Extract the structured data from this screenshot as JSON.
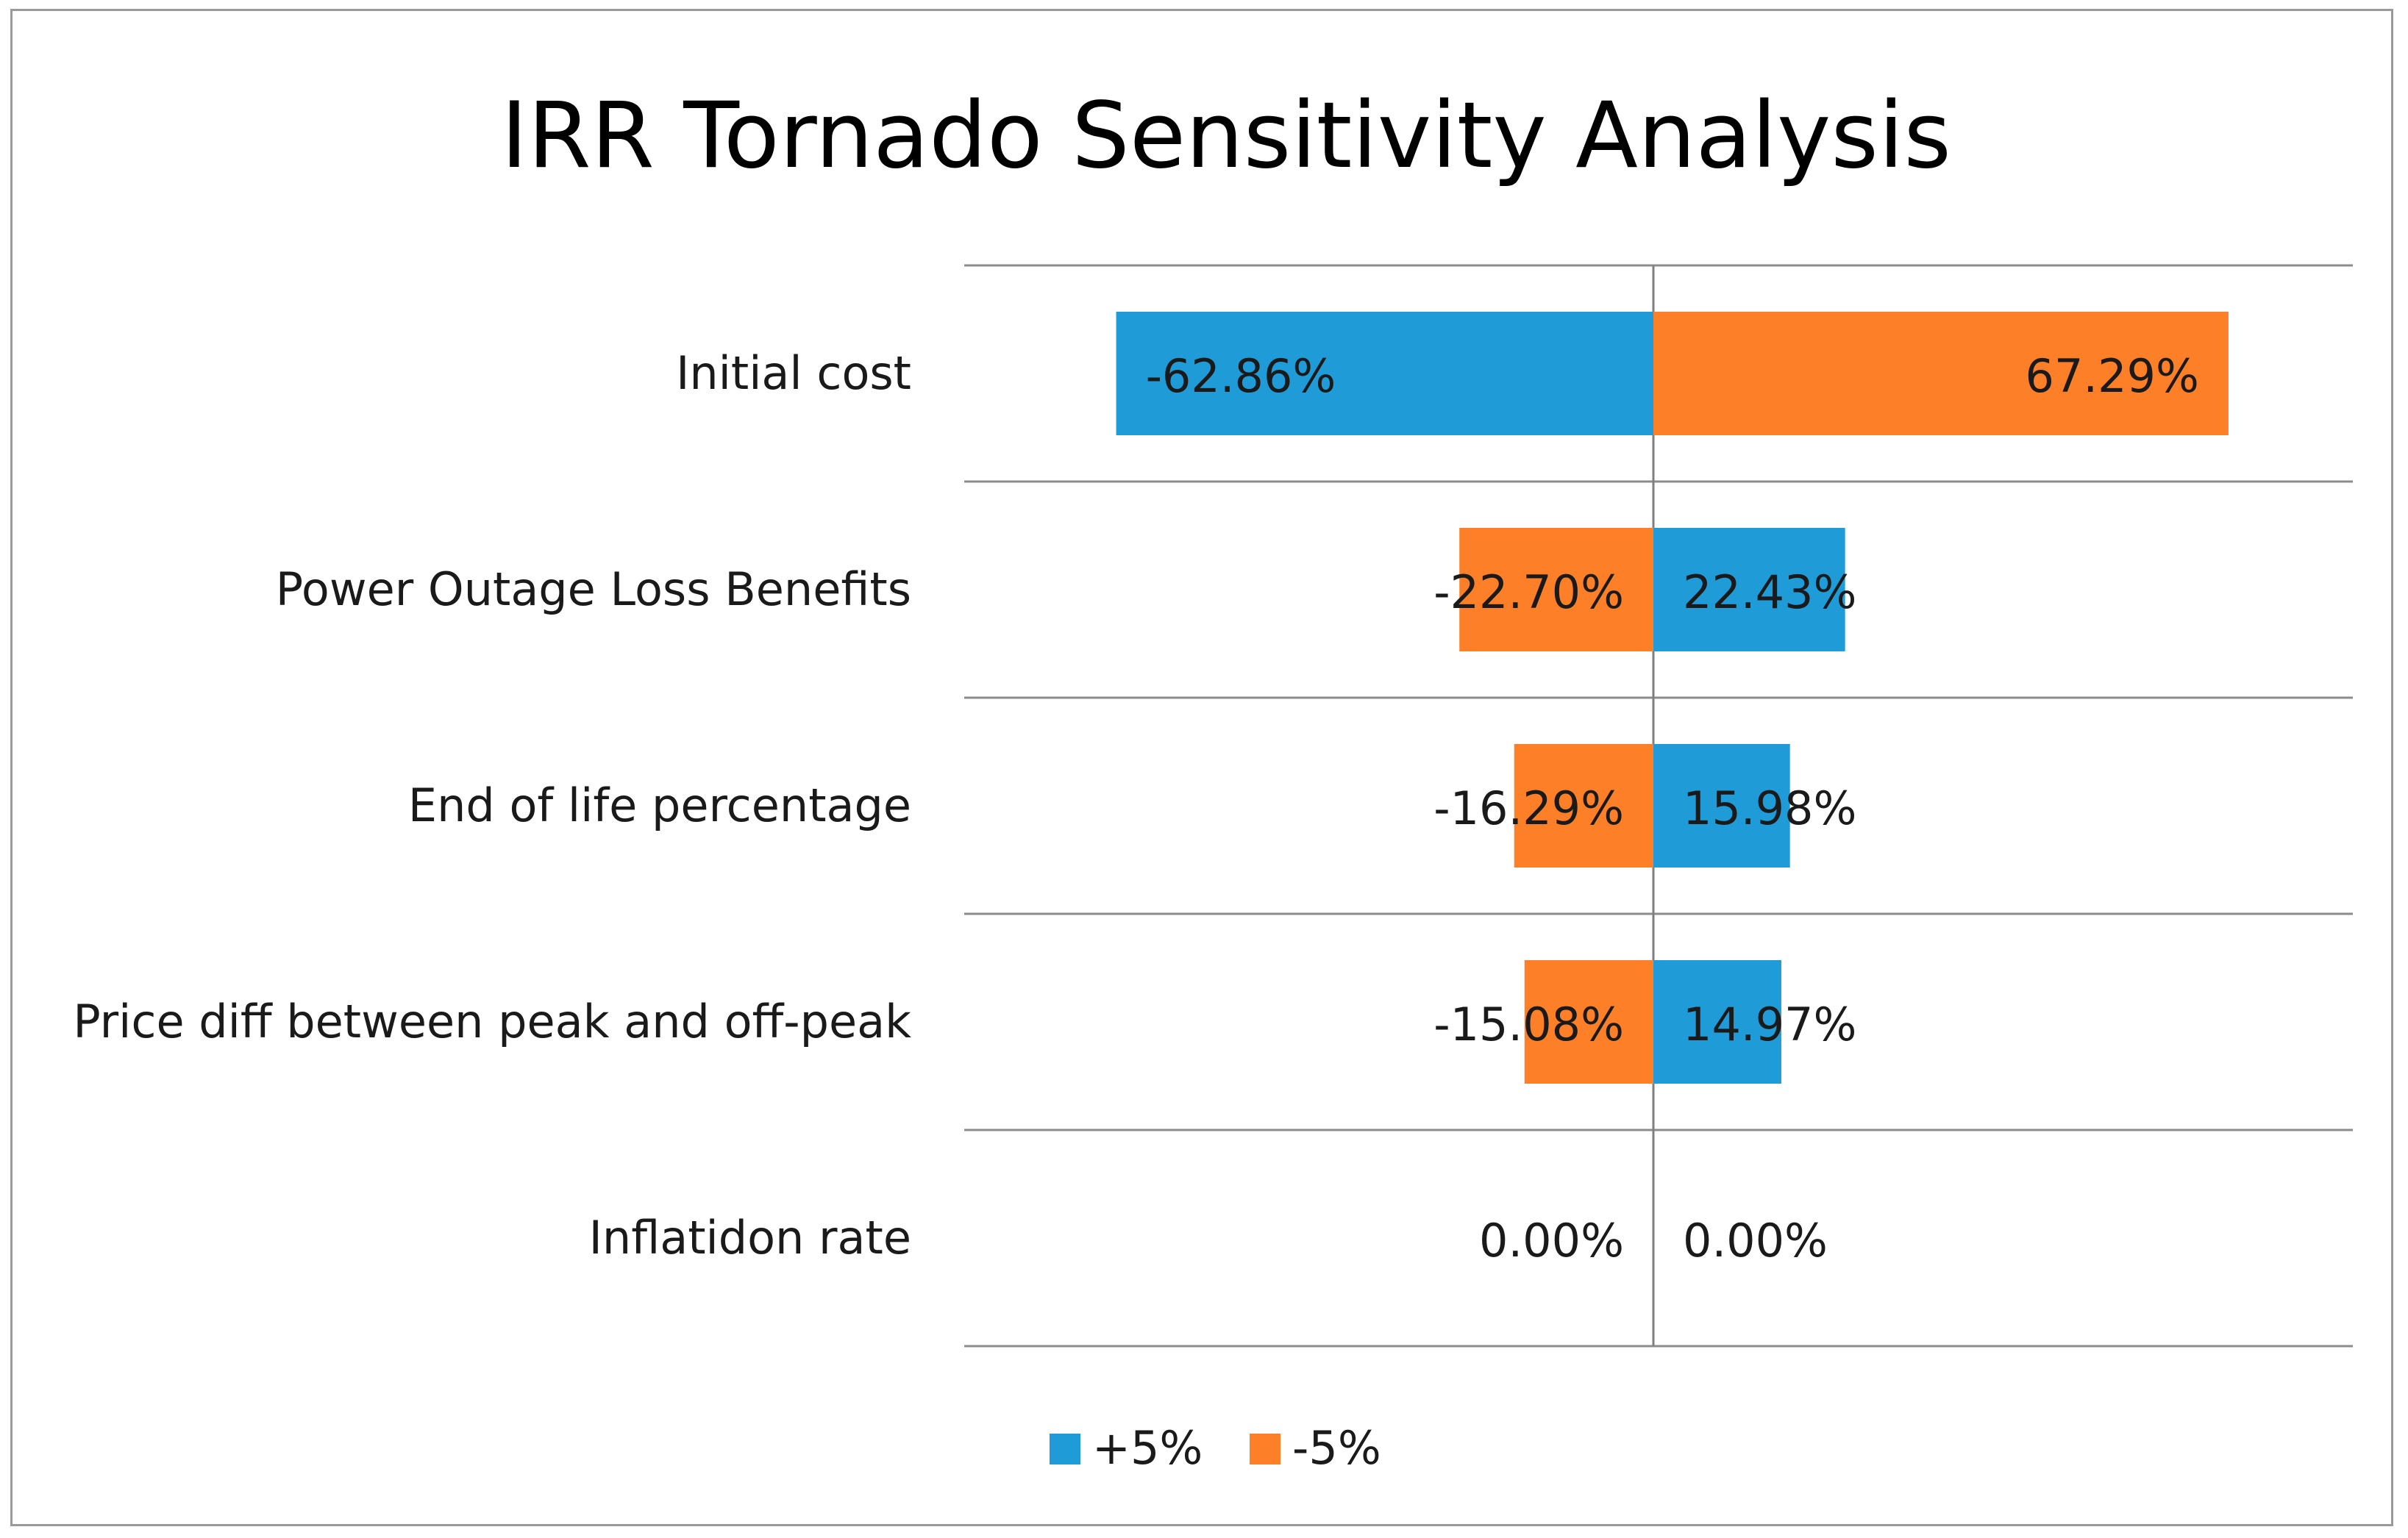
{
  "chart_data": {
    "type": "bar",
    "orientation": "horizontal-tornado",
    "title": "IRR Tornado Sensitivity Analysis",
    "categories": [
      "Initial cost",
      "Power Outage Loss Benefits",
      "End of life percentage",
      "Price diff between peak and off-peak",
      "Inflatidon rate"
    ],
    "series": [
      {
        "name": "+5%",
        "color": "#1f9bd7",
        "values": [
          -62.86,
          22.43,
          15.98,
          14.97,
          0.0
        ],
        "labels": [
          "-62.86%",
          "22.43%",
          "15.98%",
          "14.97%",
          "0.00%"
        ]
      },
      {
        "name": "-5%",
        "color": "#fd7f28",
        "values": [
          67.29,
          -22.7,
          -16.29,
          -15.08,
          0.0
        ],
        "labels": [
          "67.29%",
          "-22.70%",
          "-16.29%",
          "-15.08%",
          "0.00%"
        ]
      }
    ],
    "xlim": [
      -80,
      80
    ],
    "xlabel": "",
    "ylabel": "",
    "grid": true,
    "legend_position": "bottom"
  }
}
